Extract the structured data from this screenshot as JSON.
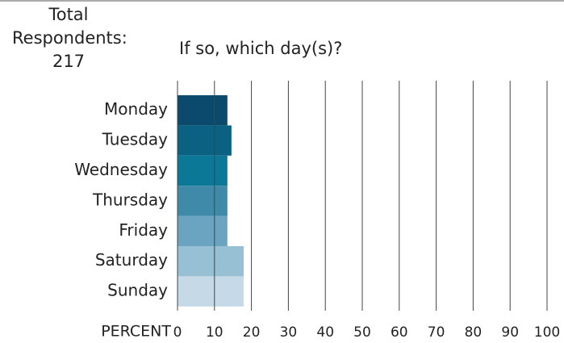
{
  "chart_data": {
    "type": "bar",
    "orientation": "horizontal",
    "respondents_label": "Total Respondents:",
    "respondents": 217,
    "title": "If so, which day(s)?",
    "x_label": "PERCENT",
    "categories": [
      "Monday",
      "Tuesday",
      "Wednesday",
      "Thursday",
      "Friday",
      "Saturday",
      "Sunday"
    ],
    "values": [
      13.5,
      14.6,
      13.5,
      13.5,
      13.5,
      17.9,
      17.9
    ],
    "colors": [
      "#0b4a6c",
      "#0a6182",
      "#0a7896",
      "#3f8aa9",
      "#6ba4c1",
      "#98c0d5",
      "#c5d9e7"
    ],
    "xlim": [
      0,
      100
    ],
    "xticks": [
      0,
      10,
      20,
      30,
      40,
      50,
      60,
      70,
      80,
      90,
      100
    ],
    "grid": true
  }
}
